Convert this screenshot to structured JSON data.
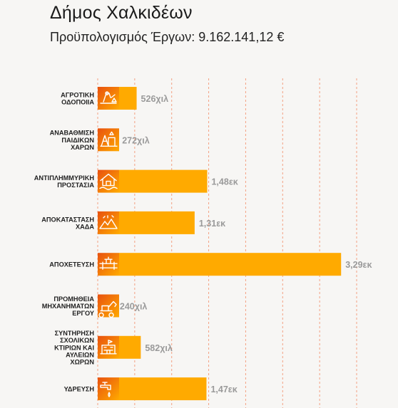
{
  "header": {
    "title": "Δήμος Χαλκιδέων",
    "subtitle": "Προϋπολογισμός Έργων: 9.162.141,12 €"
  },
  "colors": {
    "bar": "#FFAA00",
    "icon_gradient_start": "#E8510F",
    "icon_gradient_end": "#FFAA00",
    "gridline": "#F15A24",
    "value_label": "#9a9a9a"
  },
  "chart_data": {
    "type": "bar",
    "orientation": "horizontal",
    "title": "Δήμος Χαλκιδέων",
    "subtitle": "Προϋπολογισμός Έργων: 9.162.141,12 €",
    "unit": "€",
    "grid": true,
    "categories": [
      {
        "label": "ΑΓΡΟΤΙΚΗ ΟΔΟΠΟΙΙΑ",
        "lines": [
          "ΑΓΡΟΤΙΚΗ",
          "ΟΔΟΠΟΙΙΑ"
        ],
        "icon": "road-worker-icon",
        "value": 526000,
        "value_label": "526χιλ"
      },
      {
        "label": "ΑΝΑΒΑΘΜΙΣΗ ΠΑΙΔΙΚΩΝ ΧΑΡΩΝ",
        "lines": [
          "ΑΝΑΒΑΘΜΙΣΗ",
          "ΠΑΙΔΙΚΩΝ",
          "ΧΑΡΩΝ"
        ],
        "icon": "playground-icon",
        "value": 272000,
        "value_label": "272χιλ"
      },
      {
        "label": "ΑΝΤΙΠΛΗΜΜΥΡΙΚΗ ΠΡΟΣΤΑΣΙΑ",
        "lines": [
          "ΑΝΤΙΠΛΗΜΜΥΡΙΚΗ",
          "ΠΡΟΣΤΑΣΙΑ"
        ],
        "icon": "flood-house-icon",
        "value": 1480000,
        "value_label": "1,48εκ"
      },
      {
        "label": "ΑΠΟΚΑΤΑΣΤΑΣΗ ΧΑΔΑ",
        "lines": [
          "ΑΠΟΚΑΤΑΣΤΑΣΗ",
          "ΧΑΔΑ"
        ],
        "icon": "landfill-icon",
        "value": 1310000,
        "value_label": "1,31εκ"
      },
      {
        "label": "ΑΠΟΧΕΤΕΥΣΗ",
        "lines": [
          "ΑΠΟΧΕΤΕΥΣΗ"
        ],
        "icon": "pipe-valve-icon",
        "value": 3290000,
        "value_label": "3,29εκ"
      },
      {
        "label": "ΠΡΟΜΗΘΕΙΑ ΜΗΧΑΝΗΜΑΤΩΝ ΕΡΓΟΥ",
        "lines": [
          "ΠΡΟΜΗΘΕΙΑ",
          "ΜΗΧΑΝΗΜΑΤΩΝ",
          "ΕΡΓΟΥ"
        ],
        "icon": "excavator-icon",
        "value": 240000,
        "value_label": "240χιλ"
      },
      {
        "label": "ΣΥΝΤΗΡΗΣΗ ΣΧΟΛΙΚΩΝ ΚΤΙΡΙΩΝ ΚΑΙ ΑΥΛΕΙΩΝ ΧΩΡΩΝ",
        "lines": [
          "ΣΥΝΤΗΡΗΣΗ",
          "ΣΧΟΛΙΚΩΝ",
          "ΚΤΙΡΙΩΝ ΚΑΙ",
          "ΑΥΛΕΙΩΝ",
          "ΧΩΡΩΝ"
        ],
        "icon": "school-building-icon",
        "value": 582000,
        "value_label": "582χιλ"
      },
      {
        "label": "ΥΔΡΕΥΣΗ",
        "lines": [
          "ΥΔΡΕΥΣΗ"
        ],
        "icon": "water-tap-icon",
        "value": 1470000,
        "value_label": "1,47εκ"
      }
    ],
    "xlim": [
      0,
      3500000
    ],
    "x_gridlines": [
      0,
      500000,
      1000000,
      1500000,
      2000000,
      2500000,
      3000000,
      3500000
    ]
  }
}
